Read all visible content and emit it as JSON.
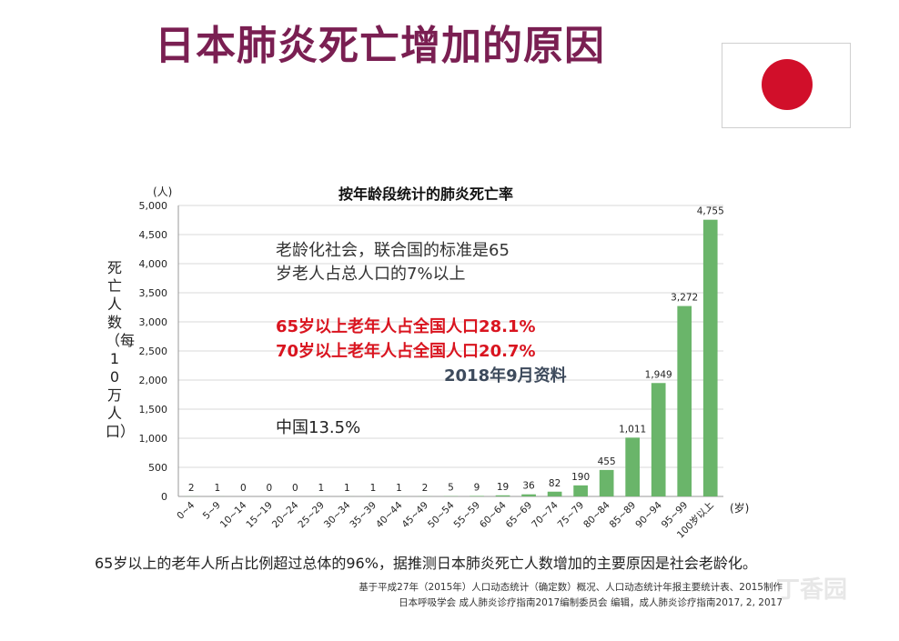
{
  "title": "日本肺炎死亡增加的原因",
  "colors": {
    "title": "#7a1f52",
    "bar": "#6ab56a",
    "flag_red": "#d10f2a",
    "highlight_red": "#d9141f",
    "date_text": "#3d4a5c"
  },
  "annotations": {
    "line1": "老龄化社会，联合国的标准是65",
    "line2": "岁老人占总人口的7%以上",
    "line3": "65岁以上老年人占全国人口28.1%",
    "line4": "70岁以上老年人占全国人口20.7%",
    "line5": "2018年9月资料",
    "line6": "中国13.5%"
  },
  "conclusion": "65岁以上的老年人所占比例超过总体的96%，据推测日本肺炎死亡人数增加的主要原因是社会老龄化。",
  "source": {
    "line1": "基于平成27年（2015年）人口动态统计（确定数）概况、人口动态统计年报主要统计表、2015制作",
    "line2": "日本呼吸学会  成人肺炎诊疗指南2017编制委员会 编辑，成人肺炎诊疗指南2017, 2, 2017"
  },
  "watermark": "丁香园",
  "chart_data": {
    "type": "bar",
    "title": "按年龄段统计的肺炎死亡率",
    "ylabel": "死亡人数（每10万人口）",
    "y_unit": "(人)",
    "x_unit": "(岁)",
    "ylim": [
      0,
      5000
    ],
    "yticks": [
      0,
      500,
      1000,
      1500,
      2000,
      2500,
      3000,
      3500,
      4000,
      4500,
      5000
    ],
    "ytick_labels": [
      "0",
      "500",
      "1,000",
      "1,500",
      "2,000",
      "2,500",
      "3,000",
      "3,500",
      "4,000",
      "4,500",
      "5,000"
    ],
    "grid": true,
    "categories": [
      "0~4",
      "5~9",
      "10~14",
      "15~19",
      "20~24",
      "25~29",
      "30~34",
      "35~39",
      "40~44",
      "45~49",
      "50~54",
      "55~59",
      "60~64",
      "65~69",
      "70~74",
      "75~79",
      "80~84",
      "85~89",
      "90~94",
      "95~99",
      "100岁以上"
    ],
    "values": [
      2,
      1,
      0,
      0,
      0,
      1,
      1,
      1,
      1,
      2,
      5,
      9,
      19,
      36,
      82,
      190,
      455,
      1011,
      1949,
      3272,
      4755
    ],
    "value_labels": [
      "2",
      "1",
      "0",
      "0",
      "0",
      "1",
      "1",
      "1",
      "1",
      "2",
      "5",
      "9",
      "19",
      "36",
      "82",
      "190",
      "455",
      "1,011",
      "1,949",
      "3,272",
      "4,755"
    ]
  }
}
